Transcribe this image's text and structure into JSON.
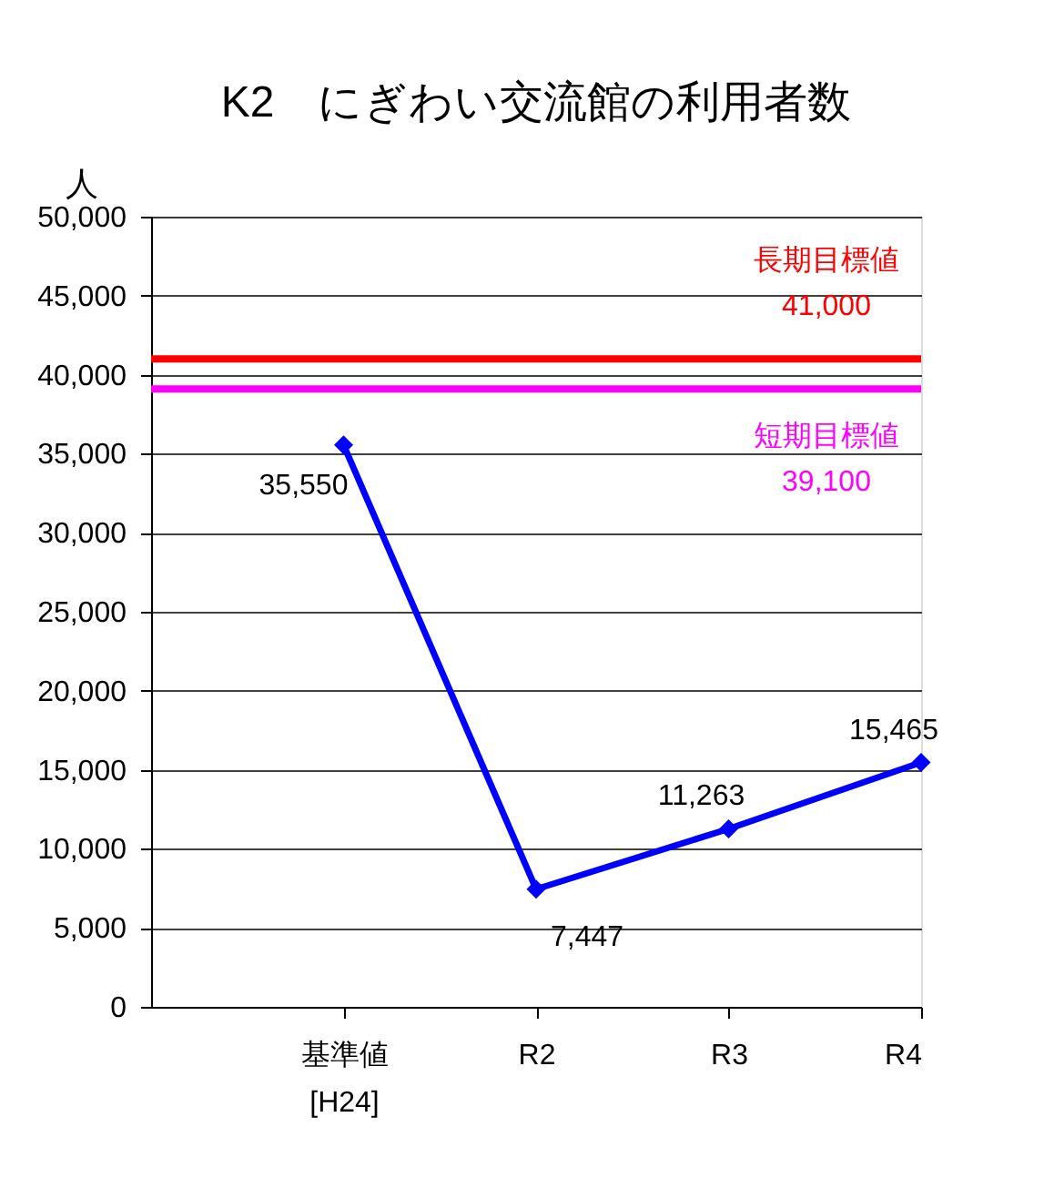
{
  "chart_data": {
    "type": "line",
    "title": "K2　にぎわい交流館の利用者数",
    "ylabel": "人",
    "categories": [
      "基準値\n[H24]",
      "R2",
      "R3",
      "R4"
    ],
    "series": [
      {
        "color": "#0000ff",
        "values": [
          35550,
          7447,
          11263,
          15465
        ],
        "value_labels": [
          "35,550",
          "7,447",
          "11,263",
          "15,465"
        ]
      }
    ],
    "ylim": [
      0,
      50000
    ],
    "yticks": [
      0,
      {
        "value": 5000,
        "label": "5,000"
      },
      {
        "value": 10000,
        "label": "10,000"
      },
      {
        "value": 15000,
        "label": "15,000"
      },
      {
        "value": 20000,
        "label": "20,000"
      },
      {
        "value": 25000,
        "label": "25,000"
      },
      {
        "value": 30000,
        "label": "30,000"
      },
      {
        "value": 35000,
        "label": "35,000"
      },
      {
        "value": 40000,
        "label": "40,000"
      },
      {
        "value": 45000,
        "label": "45,000"
      },
      {
        "value": 50000,
        "label": "50,000"
      }
    ],
    "grid": "y",
    "marker": "diamond",
    "line_style": "solid",
    "ref_lines": [
      {
        "axis": "y",
        "value": 41000,
        "label": "長期目標値\n41,000",
        "color": "#ff0000"
      },
      {
        "axis": "y",
        "value": 39100,
        "label": "短期目標値\n39,100",
        "color": "#ff00ff"
      }
    ]
  }
}
